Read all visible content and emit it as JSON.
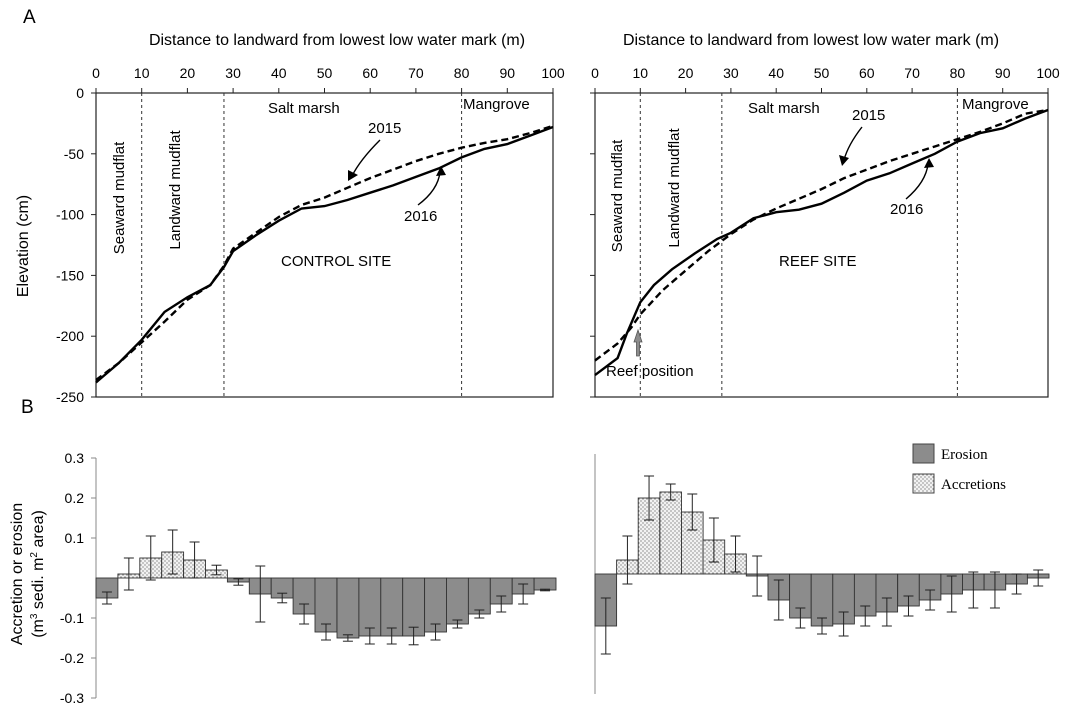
{
  "panel_labels": {
    "a": "A",
    "b": "B"
  },
  "profiles_common": {
    "xlabel": "Distance to landward from lowest low water mark (m)",
    "ylabel": "Elevation (cm)",
    "xticks": [
      0,
      10,
      20,
      30,
      40,
      50,
      60,
      70,
      80,
      90,
      100
    ],
    "yticks": [
      0,
      -50,
      -100,
      -150,
      -200,
      -250
    ],
    "xlim": [
      0,
      100
    ],
    "ylim": [
      -250,
      0
    ],
    "zone_boundaries": [
      10,
      28,
      80
    ],
    "zones": {
      "seaward": "Seaward mudflat",
      "landward": "Landward mudflat",
      "saltmarsh": "Salt marsh",
      "mangrove": "Mangrove"
    },
    "line_labels": {
      "y2015": "2015",
      "y2016": "2016"
    }
  },
  "bars_common": {
    "ylabel_line1": "Accretion or erosion",
    "ylabel_line2_a": "(m",
    "ylabel_line2_sup": "3",
    "ylabel_line2_b": " sedi. m",
    "ylabel_line2_sup2": "2",
    "ylabel_line2_c": " area)",
    "yticks": [
      "0.3",
      "0.2",
      "0.1",
      "-0.1",
      "-0.2",
      "-0.3"
    ],
    "legend": {
      "erosion": "Erosion",
      "accretion": "Accretions"
    },
    "colors": {
      "erosion": "#8c8c8c",
      "accretion": "#eeeeee"
    }
  },
  "chart_data": [
    {
      "type": "line",
      "panel": "A-left",
      "site_label": "CONTROL SITE",
      "series": [
        {
          "name": "2015",
          "style": "dashed",
          "points": [
            [
              0,
              -236
            ],
            [
              5,
              -222
            ],
            [
              10,
              -205
            ],
            [
              15,
              -188
            ],
            [
              20,
              -170
            ],
            [
              25,
              -158
            ],
            [
              28,
              -142
            ],
            [
              30,
              -128
            ],
            [
              35,
              -115
            ],
            [
              40,
              -102
            ],
            [
              45,
              -92
            ],
            [
              50,
              -86
            ],
            [
              55,
              -78
            ],
            [
              60,
              -70
            ],
            [
              65,
              -63
            ],
            [
              70,
              -56
            ],
            [
              75,
              -50
            ],
            [
              80,
              -45
            ],
            [
              85,
              -41
            ],
            [
              90,
              -38
            ],
            [
              95,
              -33
            ],
            [
              100,
              -27
            ]
          ]
        },
        {
          "name": "2016",
          "style": "solid",
          "points": [
            [
              0,
              -238
            ],
            [
              5,
              -222
            ],
            [
              10,
              -203
            ],
            [
              15,
              -180
            ],
            [
              20,
              -168
            ],
            [
              25,
              -158
            ],
            [
              28,
              -143
            ],
            [
              30,
              -130
            ],
            [
              35,
              -117
            ],
            [
              40,
              -105
            ],
            [
              45,
              -95
            ],
            [
              50,
              -93
            ],
            [
              55,
              -88
            ],
            [
              60,
              -82
            ],
            [
              65,
              -76
            ],
            [
              70,
              -69
            ],
            [
              75,
              -62
            ],
            [
              80,
              -53
            ],
            [
              85,
              -46
            ],
            [
              90,
              -42
            ],
            [
              95,
              -35
            ],
            [
              100,
              -28
            ]
          ]
        }
      ]
    },
    {
      "type": "line",
      "panel": "A-right",
      "site_label": "REEF SITE",
      "annotation": "Reef position",
      "series": [
        {
          "name": "2015",
          "style": "dashed",
          "points": [
            [
              0,
              -220
            ],
            [
              5,
              -206
            ],
            [
              8,
              -193
            ],
            [
              10,
              -182
            ],
            [
              15,
              -162
            ],
            [
              20,
              -146
            ],
            [
              25,
              -130
            ],
            [
              30,
              -116
            ],
            [
              35,
              -104
            ],
            [
              40,
              -95
            ],
            [
              45,
              -87
            ],
            [
              50,
              -79
            ],
            [
              55,
              -70
            ],
            [
              60,
              -63
            ],
            [
              65,
              -56
            ],
            [
              70,
              -50
            ],
            [
              75,
              -44
            ],
            [
              80,
              -38
            ],
            [
              85,
              -32
            ],
            [
              90,
              -25
            ],
            [
              95,
              -17
            ],
            [
              100,
              -14
            ]
          ]
        },
        {
          "name": "2016",
          "style": "solid",
          "points": [
            [
              0,
              -232
            ],
            [
              5,
              -218
            ],
            [
              7,
              -198
            ],
            [
              10,
              -172
            ],
            [
              13,
              -158
            ],
            [
              17,
              -145
            ],
            [
              22,
              -132
            ],
            [
              27,
              -120
            ],
            [
              30,
              -115
            ],
            [
              35,
              -103
            ],
            [
              40,
              -98
            ],
            [
              45,
              -96
            ],
            [
              50,
              -91
            ],
            [
              55,
              -82
            ],
            [
              60,
              -72
            ],
            [
              65,
              -66
            ],
            [
              70,
              -58
            ],
            [
              75,
              -50
            ],
            [
              80,
              -40
            ],
            [
              85,
              -33
            ],
            [
              90,
              -29
            ],
            [
              95,
              -21
            ],
            [
              100,
              -14
            ]
          ]
        }
      ]
    },
    {
      "type": "bar",
      "panel": "B-left",
      "ylim": [
        -0.3,
        0.3
      ],
      "values": [
        -0.05,
        0.01,
        0.05,
        0.065,
        0.045,
        0.02,
        -0.01,
        -0.04,
        -0.05,
        -0.09,
        -0.135,
        -0.15,
        -0.145,
        -0.145,
        -0.145,
        -0.135,
        -0.115,
        -0.09,
        -0.065,
        -0.04,
        -0.03
      ],
      "errors": [
        0.015,
        0.04,
        0.055,
        0.055,
        0.045,
        0.012,
        0.008,
        0.07,
        0.012,
        0.025,
        0.02,
        0.008,
        0.02,
        0.02,
        0.022,
        0.02,
        0.01,
        0.01,
        0.02,
        0.025,
        0.002
      ]
    },
    {
      "type": "bar",
      "panel": "B-right",
      "ylim": [
        -0.3,
        0.3
      ],
      "values": [
        -0.13,
        0.035,
        0.19,
        0.205,
        0.155,
        0.085,
        0.05,
        -0.005,
        -0.065,
        -0.11,
        -0.13,
        -0.125,
        -0.105,
        -0.095,
        -0.08,
        -0.065,
        -0.05,
        -0.04,
        -0.04,
        -0.025,
        -0.01
      ],
      "errors": [
        0.07,
        0.06,
        0.055,
        0.02,
        0.045,
        0.055,
        0.045,
        0.05,
        0.05,
        0.025,
        0.02,
        0.03,
        0.025,
        0.035,
        0.025,
        0.025,
        0.045,
        0.045,
        0.045,
        0.025,
        0.02
      ]
    }
  ]
}
